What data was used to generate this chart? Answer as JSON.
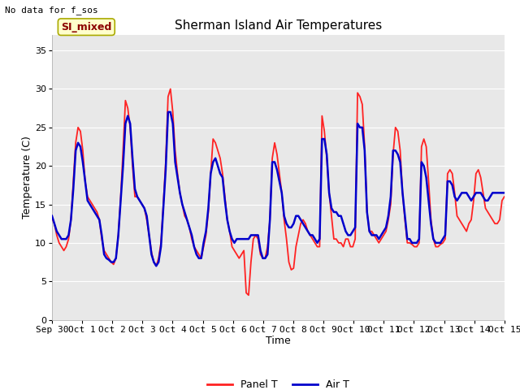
{
  "title": "Sherman Island Air Temperatures",
  "xlabel": "Time",
  "ylabel": "Temperature (C)",
  "note": "No data for f_sos",
  "legend_label": "SI_mixed",
  "ylim": [
    0,
    37
  ],
  "yticks": [
    0,
    5,
    10,
    15,
    20,
    25,
    30,
    35
  ],
  "x_tick_labels": [
    "Sep 30",
    "Oct 1",
    "Oct 2",
    "Oct 3",
    "Oct 4",
    "Oct 5",
    "Oct 6",
    "Oct 7",
    "Oct 8",
    "Oct 9",
    "Oct 10",
    "Oct 11",
    "Oct 12",
    "Oct 13",
    "Oct 14",
    "Oct 15"
  ],
  "panel_T_color": "#FF2222",
  "air_T_color": "#0000CC",
  "plot_bg_color": "#E8E8E8",
  "fig_bg_color": "#FFFFFF",
  "title_fontsize": 11,
  "label_fontsize": 9,
  "tick_fontsize": 8,
  "note_fontsize": 8,
  "legend_fontsize": 9,
  "panel_T_label": "Panel T",
  "air_T_label": "Air T",
  "panel_T_linewidth": 1.3,
  "air_T_linewidth": 1.8,
  "panel_T": [
    13.2,
    12.5,
    11.0,
    10.0,
    9.5,
    9.0,
    9.5,
    10.5,
    13.0,
    18.0,
    23.0,
    25.0,
    24.5,
    22.0,
    18.0,
    16.0,
    15.5,
    15.0,
    14.5,
    14.0,
    13.0,
    10.5,
    9.0,
    8.5,
    8.0,
    7.5,
    7.2,
    8.0,
    11.0,
    16.0,
    22.0,
    28.5,
    27.5,
    25.0,
    20.0,
    16.0,
    16.0,
    15.5,
    15.0,
    14.5,
    13.0,
    11.0,
    8.8,
    7.5,
    7.0,
    8.0,
    10.0,
    15.0,
    20.5,
    29.0,
    30.0,
    27.0,
    22.0,
    19.0,
    16.5,
    15.0,
    13.5,
    13.0,
    12.0,
    10.5,
    9.5,
    9.0,
    8.5,
    8.0,
    9.5,
    11.0,
    14.0,
    19.0,
    23.5,
    23.0,
    22.0,
    21.0,
    19.0,
    16.0,
    13.0,
    11.5,
    9.5,
    9.0,
    8.5,
    8.0,
    8.5,
    9.0,
    3.5,
    3.2,
    7.5,
    10.5,
    11.0,
    10.5,
    8.5,
    8.0,
    8.0,
    9.5,
    13.0,
    21.0,
    23.0,
    21.5,
    19.0,
    16.5,
    13.0,
    10.5,
    7.5,
    6.5,
    6.7,
    9.5,
    11.0,
    12.5,
    13.0,
    12.5,
    11.5,
    11.0,
    10.5,
    10.0,
    9.5,
    9.5,
    26.5,
    24.5,
    21.0,
    16.5,
    13.5,
    10.5,
    10.5,
    10.0,
    10.0,
    9.5,
    10.5,
    10.5,
    9.5,
    9.5,
    10.5,
    29.5,
    29.0,
    28.0,
    22.5,
    14.0,
    11.5,
    11.5,
    11.0,
    10.5,
    10.0,
    10.5,
    11.0,
    11.5,
    13.0,
    15.0,
    21.5,
    25.0,
    24.5,
    22.0,
    16.5,
    13.0,
    10.0,
    10.0,
    9.8,
    9.5,
    9.5,
    10.0,
    22.5,
    23.5,
    22.5,
    18.0,
    13.0,
    10.5,
    9.5,
    9.5,
    9.8,
    10.0,
    10.5,
    19.0,
    19.5,
    19.0,
    16.5,
    13.5,
    13.0,
    12.5,
    12.0,
    11.5,
    12.5,
    13.0,
    15.5,
    19.0,
    19.5,
    18.5,
    16.5,
    14.5,
    14.0,
    13.5,
    13.0,
    12.5,
    12.5,
    13.0,
    15.5,
    16.0
  ],
  "air_T": [
    13.5,
    12.5,
    11.5,
    11.0,
    10.5,
    10.5,
    10.5,
    11.0,
    13.0,
    17.0,
    22.0,
    23.0,
    22.5,
    20.5,
    18.0,
    15.5,
    15.0,
    14.5,
    14.0,
    13.5,
    13.0,
    11.0,
    8.5,
    8.0,
    7.8,
    7.5,
    7.5,
    8.0,
    11.0,
    15.5,
    20.0,
    25.5,
    26.5,
    25.5,
    21.0,
    17.0,
    16.0,
    15.5,
    15.0,
    14.5,
    13.5,
    11.0,
    8.5,
    7.5,
    7.0,
    7.5,
    9.5,
    14.5,
    19.5,
    27.0,
    27.0,
    25.5,
    20.5,
    18.5,
    16.5,
    15.0,
    14.0,
    13.0,
    12.0,
    11.0,
    9.5,
    8.5,
    8.0,
    8.0,
    10.0,
    11.5,
    14.5,
    19.0,
    20.5,
    21.0,
    20.0,
    19.0,
    18.5,
    15.5,
    13.0,
    11.5,
    10.5,
    10.0,
    10.5,
    10.5,
    10.5,
    10.5,
    10.5,
    10.5,
    11.0,
    11.0,
    11.0,
    11.0,
    9.0,
    8.0,
    8.0,
    8.5,
    13.0,
    20.5,
    20.5,
    19.5,
    18.0,
    16.5,
    13.5,
    12.5,
    12.0,
    12.0,
    12.5,
    13.5,
    13.5,
    13.0,
    12.5,
    12.0,
    11.5,
    11.0,
    11.0,
    10.5,
    10.0,
    10.5,
    23.5,
    23.5,
    21.5,
    16.5,
    14.5,
    14.0,
    14.0,
    13.5,
    13.5,
    12.5,
    11.5,
    11.0,
    11.0,
    11.5,
    12.0,
    25.5,
    25.0,
    25.0,
    22.0,
    14.0,
    11.5,
    11.0,
    11.0,
    11.0,
    10.5,
    11.0,
    11.5,
    12.0,
    13.5,
    16.0,
    22.0,
    22.0,
    21.5,
    20.5,
    16.5,
    13.5,
    10.5,
    10.5,
    10.0,
    10.0,
    10.0,
    10.5,
    20.5,
    20.0,
    18.5,
    15.5,
    12.5,
    10.5,
    10.0,
    10.0,
    10.0,
    10.5,
    11.0,
    18.0,
    18.0,
    17.5,
    16.0,
    15.5,
    16.0,
    16.5,
    16.5,
    16.5,
    16.0,
    15.5,
    16.0,
    16.5,
    16.5,
    16.5,
    16.0,
    15.5,
    15.5,
    16.0,
    16.5,
    16.5,
    16.5,
    16.5,
    16.5,
    16.5
  ]
}
